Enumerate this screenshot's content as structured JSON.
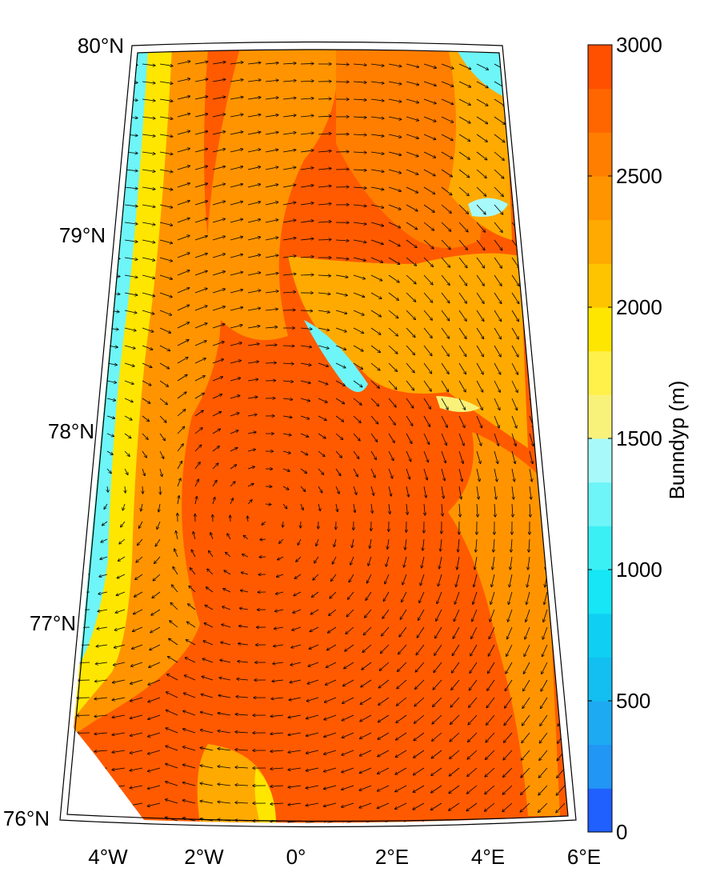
{
  "map": {
    "lat_labels": [
      "80°N",
      "79°N",
      "78°N",
      "77°N",
      "76°N"
    ],
    "lon_labels": [
      "4°W",
      "2°W",
      "0°",
      "2°E",
      "4°E",
      "6°E"
    ]
  },
  "colorbar": {
    "label": "Bunndyp (m)",
    "lim": [
      0,
      3000
    ],
    "ticks": [
      0,
      500,
      1000,
      1500,
      2000,
      2500,
      3000
    ],
    "colors": [
      "#2060ff",
      "#2196f5",
      "#1eaaf2",
      "#12bff0",
      "#0fd0f2",
      "#16e6f5",
      "#3af0f5",
      "#6ef5f7",
      "#a8fafa",
      "#f8f27a",
      "#fff04a",
      "#ffe600",
      "#ffc400",
      "#ffaa00",
      "#ff9400",
      "#ff7e00",
      "#ff6600",
      "#ff5000"
    ]
  }
}
